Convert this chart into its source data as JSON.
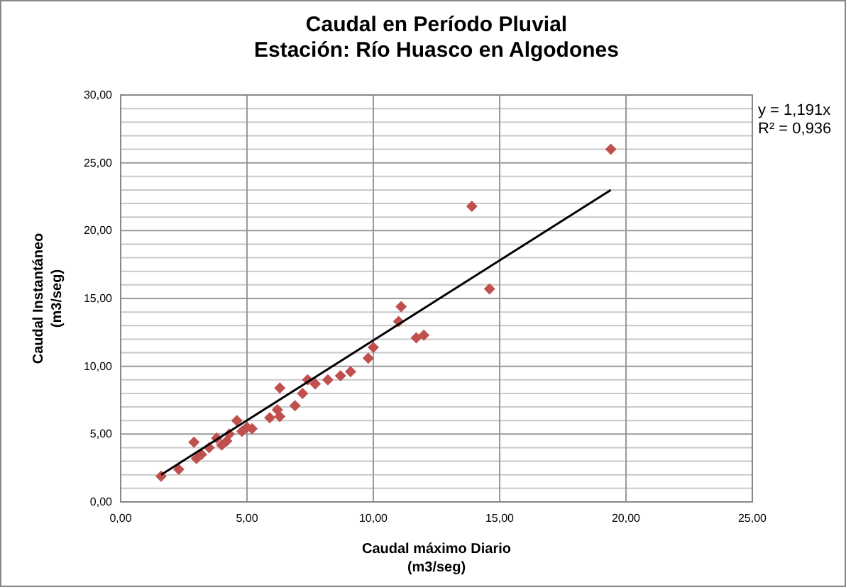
{
  "chart_data": {
    "type": "scatter",
    "title": "Caudal en Período Pluvial\nEstación: Río Huasco en Algodones",
    "xlabel": "Caudal máximo Diario\n(m3/seg)",
    "ylabel": "Caudal Instantáneo\n(m3/seg)",
    "xlim": [
      0,
      25
    ],
    "ylim": [
      0,
      30
    ],
    "xticks": [
      {
        "value": 0,
        "label": "0,00"
      },
      {
        "value": 5,
        "label": "5,00"
      },
      {
        "value": 10,
        "label": "10,00"
      },
      {
        "value": 15,
        "label": "15,00"
      },
      {
        "value": 20,
        "label": "20,00"
      },
      {
        "value": 25,
        "label": "25,00"
      }
    ],
    "yticks": [
      {
        "value": 0,
        "label": "0,00"
      },
      {
        "value": 5,
        "label": "5,00"
      },
      {
        "value": 10,
        "label": "10,00"
      },
      {
        "value": 15,
        "label": "15,00"
      },
      {
        "value": 20,
        "label": "20,00"
      },
      {
        "value": 25,
        "label": "25,00"
      },
      {
        "value": 30,
        "label": "30,00"
      }
    ],
    "grid": true,
    "series": [
      {
        "marker": "diamond",
        "color": "#c0504d",
        "x": [
          1.6,
          2.3,
          2.9,
          3.0,
          3.2,
          3.5,
          3.8,
          4.0,
          4.2,
          4.3,
          4.6,
          4.8,
          5.0,
          5.2,
          5.9,
          6.2,
          6.3,
          6.3,
          6.9,
          7.2,
          7.4,
          7.7,
          8.2,
          8.7,
          9.1,
          9.8,
          10.0,
          11.0,
          11.1,
          11.7,
          12.0,
          13.9,
          14.6,
          19.4
        ],
        "values": [
          1.9,
          2.4,
          4.4,
          3.2,
          3.5,
          4.0,
          4.7,
          4.2,
          4.5,
          5.0,
          6.0,
          5.2,
          5.5,
          5.4,
          6.2,
          6.8,
          6.3,
          8.4,
          7.1,
          8.0,
          9.0,
          8.7,
          9.0,
          9.3,
          9.6,
          10.6,
          11.4,
          13.3,
          14.4,
          12.1,
          12.3,
          21.8,
          15.7,
          26.0
        ]
      },
      {
        "type": "line",
        "color": "#000000",
        "x": [
          1.6,
          19.4
        ],
        "values": [
          2.0,
          23.0
        ]
      }
    ],
    "annotations": [
      "y = 1,191x",
      "R² = 0,936"
    ]
  }
}
